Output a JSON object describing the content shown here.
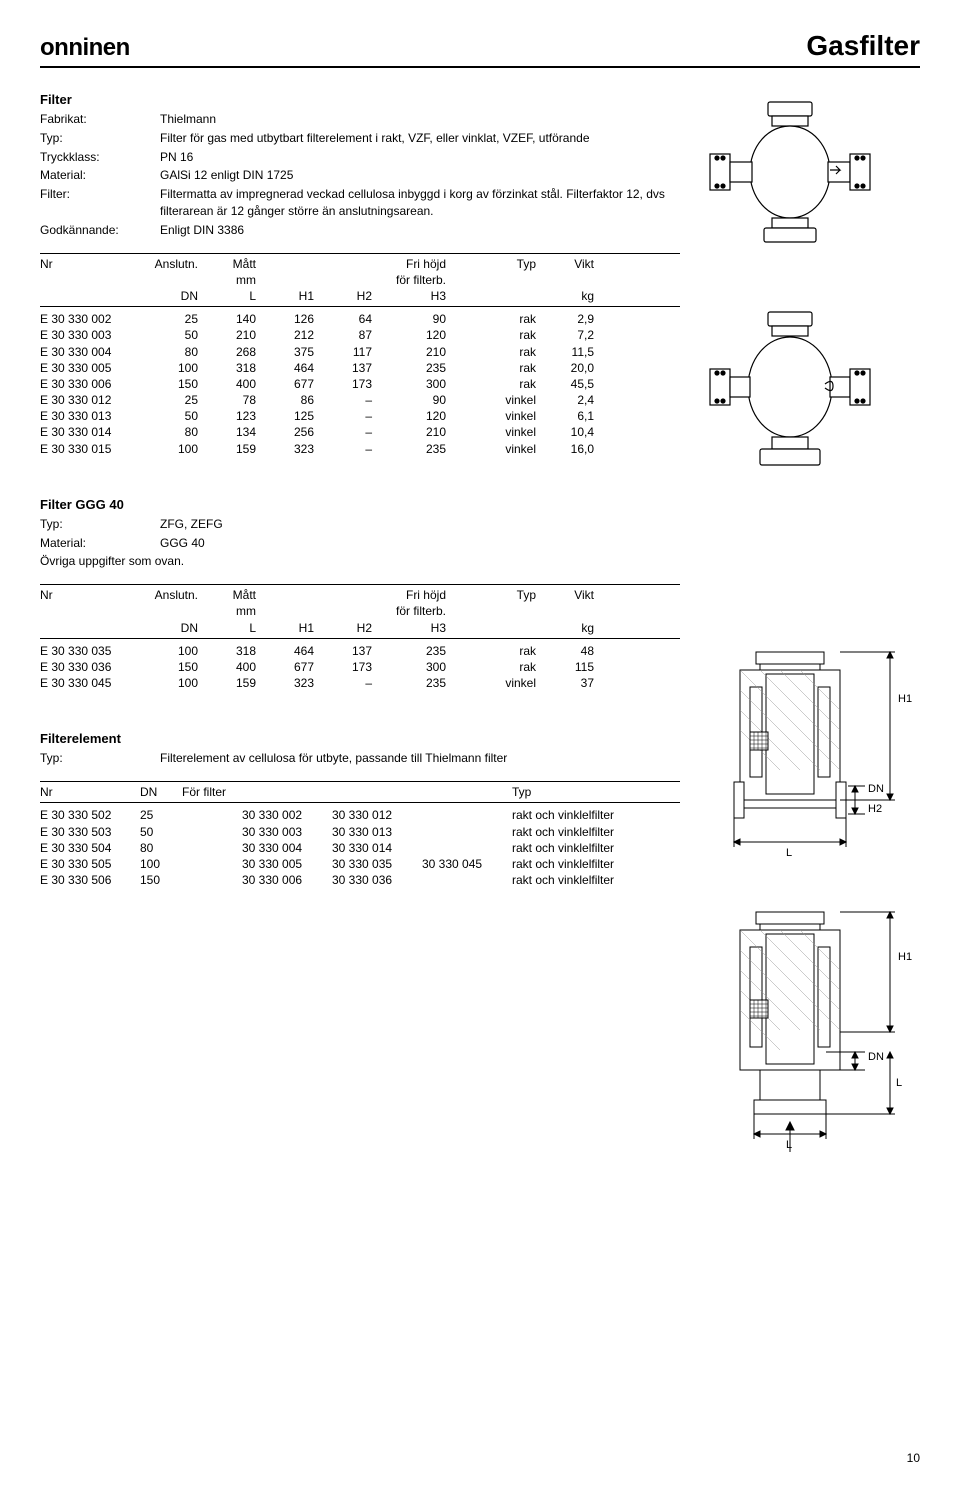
{
  "header": {
    "logo": "onninen",
    "title": "Gasfilter"
  },
  "section1": {
    "heading": "Filter",
    "rows": [
      {
        "label": "Fabrikat:",
        "value": "Thielmann"
      },
      {
        "label": "Typ:",
        "value": "Filter för gas med utbytbart filterelement i rakt, VZF, eller vinklat, VZEF, utförande"
      },
      {
        "label": "Tryckklass:",
        "value": "PN 16"
      },
      {
        "label": "Material:",
        "value": "GAlSi 12 enligt DIN 1725"
      },
      {
        "label": "Filter:",
        "value": "Filtermatta av impregnerad veckad cellulosa inbyggd i korg av förzinkat stål. Filterfaktor 12, dvs filterarean är 12 gånger större än anslutningsarean."
      },
      {
        "label": "Godkännande:",
        "value": "Enligt DIN 3386"
      }
    ],
    "table": {
      "head": {
        "nr": "Nr",
        "anslutn": "Anslutn.",
        "matt": "Mått",
        "fri": "Fri höjd",
        "typ": "Typ",
        "vikt": "Vikt",
        "mm": "mm",
        "for": "för filterb.",
        "dn": "DN",
        "l": "L",
        "h1": "H1",
        "h2": "H2",
        "h3": "H3",
        "kg": "kg"
      },
      "rows": [
        {
          "nr": "E 30 330 002",
          "dn": "25",
          "l": "140",
          "h1": "126",
          "h2": "64",
          "h3": "90",
          "typ": "rak",
          "wt": "2,9"
        },
        {
          "nr": "E 30 330 003",
          "dn": "50",
          "l": "210",
          "h1": "212",
          "h2": "87",
          "h3": "120",
          "typ": "rak",
          "wt": "7,2"
        },
        {
          "nr": "E 30 330 004",
          "dn": "80",
          "l": "268",
          "h1": "375",
          "h2": "117",
          "h3": "210",
          "typ": "rak",
          "wt": "11,5"
        },
        {
          "nr": "E 30 330 005",
          "dn": "100",
          "l": "318",
          "h1": "464",
          "h2": "137",
          "h3": "235",
          "typ": "rak",
          "wt": "20,0"
        },
        {
          "nr": "E 30 330 006",
          "dn": "150",
          "l": "400",
          "h1": "677",
          "h2": "173",
          "h3": "300",
          "typ": "rak",
          "wt": "45,5"
        },
        {
          "nr": "E 30 330 012",
          "dn": "25",
          "l": "78",
          "h1": "86",
          "h2": "–",
          "h3": "90",
          "typ": "vinkel",
          "wt": "2,4"
        },
        {
          "nr": "E 30 330 013",
          "dn": "50",
          "l": "123",
          "h1": "125",
          "h2": "–",
          "h3": "120",
          "typ": "vinkel",
          "wt": "6,1"
        },
        {
          "nr": "E 30 330 014",
          "dn": "80",
          "l": "134",
          "h1": "256",
          "h2": "–",
          "h3": "210",
          "typ": "vinkel",
          "wt": "10,4"
        },
        {
          "nr": "E 30 330 015",
          "dn": "100",
          "l": "159",
          "h1": "323",
          "h2": "–",
          "h3": "235",
          "typ": "vinkel",
          "wt": "16,0"
        }
      ]
    }
  },
  "section2": {
    "heading": "Filter GGG 40",
    "rows": [
      {
        "label": "Typ:",
        "value": "ZFG, ZEFG"
      },
      {
        "label": "Material:",
        "value": "GGG 40"
      }
    ],
    "note": "Övriga uppgifter som ovan.",
    "table": {
      "head": {
        "nr": "Nr",
        "anslutn": "Anslutn.",
        "matt": "Mått",
        "fri": "Fri höjd",
        "typ": "Typ",
        "vikt": "Vikt",
        "mm": "mm",
        "for": "för filterb.",
        "dn": "DN",
        "l": "L",
        "h1": "H1",
        "h2": "H2",
        "h3": "H3",
        "kg": "kg"
      },
      "rows": [
        {
          "nr": "E 30 330 035",
          "dn": "100",
          "l": "318",
          "h1": "464",
          "h2": "137",
          "h3": "235",
          "typ": "rak",
          "wt": "48"
        },
        {
          "nr": "E 30 330 036",
          "dn": "150",
          "l": "400",
          "h1": "677",
          "h2": "173",
          "h3": "300",
          "typ": "rak",
          "wt": "115"
        },
        {
          "nr": "E 30 330 045",
          "dn": "100",
          "l": "159",
          "h1": "323",
          "h2": "–",
          "h3": "235",
          "typ": "vinkel",
          "wt": "37"
        }
      ]
    }
  },
  "section3": {
    "heading": "Filterelement",
    "rows": [
      {
        "label": "Typ:",
        "value": "Filterelement av cellulosa för utbyte, passande till Thielmann filter"
      }
    ],
    "table": {
      "head": {
        "nr": "Nr",
        "dn": "DN",
        "for": "För filter",
        "typ": "Typ"
      },
      "rows": [
        {
          "nr": "E 30 330 502",
          "dn": "25",
          "f1": "30 330 002",
          "f2": "30 330 012",
          "f3": "",
          "typ": "rakt och vinklelfilter"
        },
        {
          "nr": "E 30 330 503",
          "dn": "50",
          "f1": "30 330 003",
          "f2": "30 330 013",
          "f3": "",
          "typ": "rakt och vinklelfilter"
        },
        {
          "nr": "E 30 330 504",
          "dn": "80",
          "f1": "30 330 004",
          "f2": "30 330 014",
          "f3": "",
          "typ": "rakt och vinklelfilter"
        },
        {
          "nr": "E 30 330 505",
          "dn": "100",
          "f1": "30 330 005",
          "f2": "30 330 035",
          "f3": "30 330 045",
          "typ": "rakt och vinklelfilter"
        },
        {
          "nr": "E 30 330 506",
          "dn": "150",
          "f1": "30 330 006",
          "f2": "30 330 036",
          "f3": "",
          "typ": "rakt och vinklelfilter"
        }
      ]
    }
  },
  "diagram_labels": {
    "h1": "H1",
    "h2": "H2",
    "dn": "DN",
    "l": "L"
  },
  "page_number": "10"
}
